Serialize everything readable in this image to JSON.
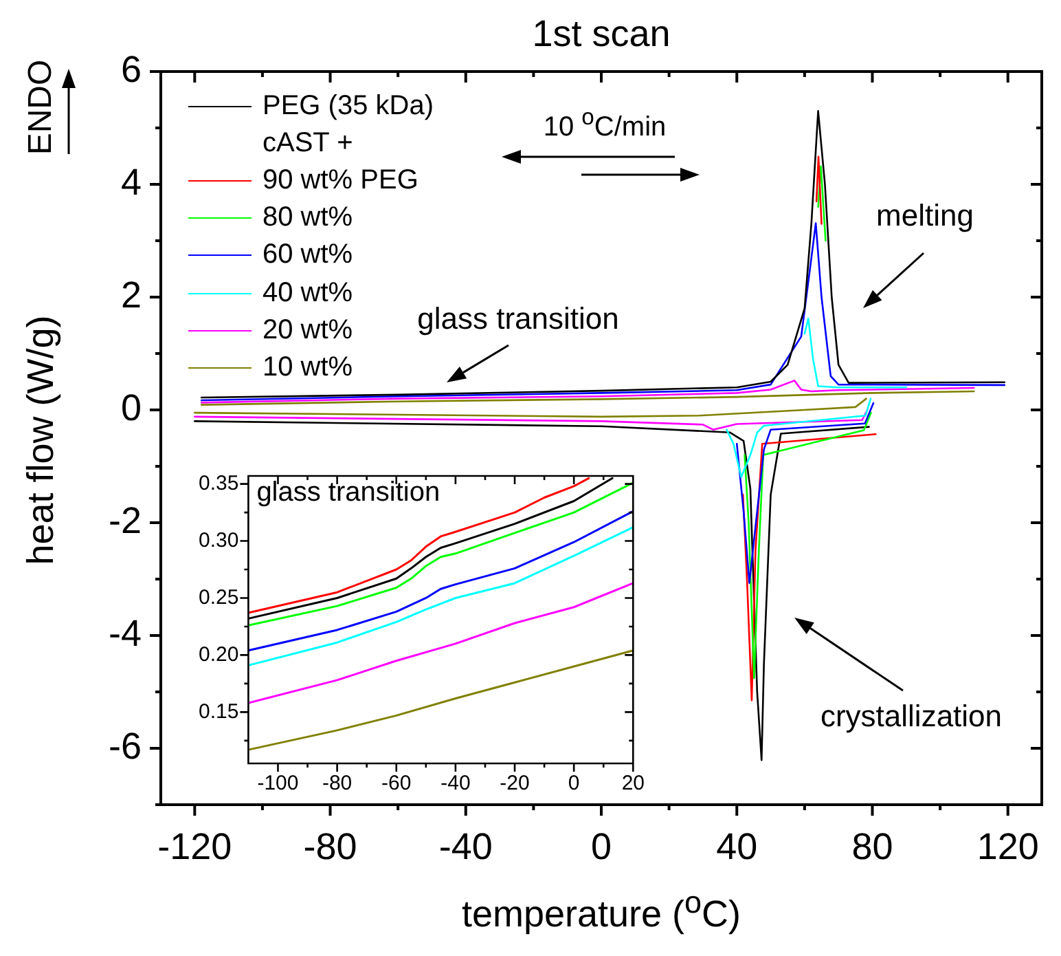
{
  "chart_data": [
    {
      "type": "line",
      "title": "1st scan",
      "xlabel": "temperature ($^{o}$C)",
      "ylabel": "heat flow (W/g)",
      "xlim": [
        -130,
        130
      ],
      "ylim": [
        -7,
        6
      ],
      "xticks": [
        -120,
        {
          "value": -100,
          "label": null
        },
        -80,
        {
          "value": -60,
          "label": null
        },
        -40,
        {
          "value": -20,
          "label": null
        },
        0,
        {
          "value": 20,
          "label": null
        },
        40,
        {
          "value": 60,
          "label": null
        },
        80,
        {
          "value": 100,
          "label": null
        },
        120
      ],
      "yticks": [
        {
          "value": -7,
          "label": null
        },
        -6,
        {
          "value": -5,
          "label": null
        },
        -4,
        {
          "value": -3,
          "label": null
        },
        -2,
        {
          "value": -1,
          "label": null
        },
        0,
        {
          "value": 1,
          "label": null
        },
        2,
        {
          "value": 3,
          "label": null
        },
        4,
        {
          "value": 5,
          "label": null
        },
        6
      ],
      "grid": false,
      "legend": "top left",
      "line_style": "solid",
      "marker": "none",
      "annotations": [
        "ENDO",
        "10 $^{o}$C/min",
        "cAST +",
        "glass transition",
        "melting",
        "crystallization"
      ],
      "series": [
        {
          "name": "PEG (35 kDa)",
          "color": "#000000",
          "x": [
            -118,
            -60,
            0,
            40,
            50,
            55,
            60,
            62,
            64,
            66,
            68,
            70,
            73,
            119
          ],
          "values": [
            0.22,
            0.27,
            0.34,
            0.4,
            0.5,
            0.8,
            1.8,
            3.3,
            5.3,
            4.0,
            2.0,
            0.8,
            0.48,
            0.49
          ]
        },
        {
          "name": "90 wt% PEG",
          "color": "#ff0000",
          "x": [
            63.5,
            64.1,
            65.0
          ],
          "values": [
            3.7,
            4.49,
            3.3
          ]
        },
        {
          "name": "80 wt%",
          "color": "#00ff00",
          "x": [
            64.0,
            64.8,
            66.2
          ],
          "values": [
            3.6,
            4.32,
            3.0
          ]
        },
        {
          "name": "60 wt%",
          "color": "#0000ff",
          "x": [
            -118,
            -60,
            0,
            40,
            50,
            59,
            61.8,
            63.3,
            65,
            67.7,
            70,
            119
          ],
          "values": [
            0.17,
            0.24,
            0.3,
            0.35,
            0.45,
            1.3,
            2.6,
            3.31,
            2.0,
            0.6,
            0.45,
            0.44
          ]
        },
        {
          "name": "40 wt%",
          "color": "#00ffff",
          "x": [
            60,
            61.1,
            62.5,
            64,
            70,
            90
          ],
          "values": [
            1.35,
            1.62,
            0.9,
            0.42,
            0.4,
            0.4
          ]
        },
        {
          "name": "20 wt%",
          "color": "#ff00ff",
          "x": [
            -118,
            -60,
            0,
            40,
            50,
            57,
            59,
            62,
            70,
            110
          ],
          "values": [
            0.13,
            0.2,
            0.24,
            0.3,
            0.36,
            0.52,
            0.36,
            0.33,
            0.35,
            0.39
          ]
        },
        {
          "name": "10 wt%",
          "color": "#808000",
          "x": [
            -118,
            -60,
            0,
            40,
            80,
            110
          ],
          "values": [
            0.09,
            0.15,
            0.19,
            0.23,
            0.3,
            0.33
          ]
        },
        {
          "color": "#00ffff",
          "x": [
            79.5,
            78,
            48,
            46,
            44,
            41.3,
            39,
            37
          ],
          "values": [
            0.2,
            -0.1,
            -0.28,
            -0.4,
            -0.8,
            -1.19,
            -0.6,
            -0.35
          ]
        },
        {
          "color": "#0000ff",
          "x": [
            80.3,
            77.8,
            50,
            48,
            46,
            43.7,
            42,
            40
          ],
          "values": [
            0.12,
            -0.24,
            -0.35,
            -0.7,
            -1.8,
            -3.07,
            -1.8,
            -0.6
          ]
        },
        {
          "color": "#00ff00",
          "x": [
            79.6,
            77.5,
            47.8,
            46.5,
            45.1,
            43.5,
            42.3
          ],
          "values": [
            -0.05,
            -0.36,
            -0.8,
            -2.5,
            -4.76,
            -2.0,
            -0.8
          ]
        },
        {
          "color": "#ff0000",
          "x": [
            81,
            47.5,
            45.5,
            44.4,
            43,
            41.8
          ],
          "values": [
            -0.43,
            -0.6,
            -2.5,
            -5.15,
            -3.0,
            -1.5
          ]
        },
        {
          "color": "#ff00ff",
          "x": [
            78.5,
            77,
            40,
            33,
            30,
            0,
            -120
          ],
          "values": [
            0.0,
            -0.18,
            -0.25,
            -0.35,
            -0.26,
            -0.2,
            -0.12
          ]
        },
        {
          "color": "#808000",
          "x": [
            78.2,
            75,
            60,
            29,
            0,
            -120
          ],
          "values": [
            0.2,
            0.05,
            0.0,
            -0.1,
            -0.12,
            -0.05
          ]
        },
        {
          "color": "#000000",
          "x": [
            79,
            53,
            50,
            48,
            47.3,
            46,
            44.6,
            44,
            42,
            38,
            0,
            -120
          ],
          "values": [
            -0.3,
            -0.42,
            -1.5,
            -4.5,
            -6.21,
            -5.0,
            -2.5,
            -1.4,
            -0.55,
            -0.4,
            -0.29,
            -0.2
          ]
        }
      ]
    },
    {
      "type": "line",
      "title": "glass transition",
      "xlim": [
        -110,
        20
      ],
      "ylim": [
        0.105,
        0.357
      ],
      "xticks": [
        -100,
        {
          "value": -90,
          "label": null
        },
        -80,
        {
          "value": -70,
          "label": null
        },
        -60,
        {
          "value": -50,
          "label": null
        },
        -40,
        {
          "value": -30,
          "label": null
        },
        -20,
        {
          "value": -10,
          "label": null
        },
        0,
        {
          "value": 10,
          "label": null
        },
        20
      ],
      "yticks": [
        {
          "value": 0.125,
          "label": null
        },
        0.15,
        {
          "value": 0.175,
          "label": null
        },
        {
          "value": 0.2,
          "label": "0.20"
        },
        {
          "value": 0.225,
          "label": null
        },
        0.25,
        {
          "value": 0.275,
          "label": null
        },
        {
          "value": 0.3,
          "label": "0.30"
        },
        {
          "value": 0.325,
          "label": null
        },
        0.35
      ],
      "grid": false,
      "line_style": "solid",
      "marker": "none",
      "series": [
        {
          "color": "#ff0000",
          "x": [
            -110,
            -80,
            -60,
            -55,
            -50,
            -45,
            -40,
            -20,
            -10,
            0,
            5
          ],
          "values": [
            0.237,
            0.255,
            0.275,
            0.283,
            0.295,
            0.304,
            0.308,
            0.325,
            0.338,
            0.348,
            0.355
          ]
        },
        {
          "color": "#000000",
          "x": [
            -110,
            -80,
            -60,
            -55,
            -50,
            -45,
            -40,
            -20,
            0,
            13
          ],
          "values": [
            0.232,
            0.25,
            0.267,
            0.276,
            0.286,
            0.294,
            0.298,
            0.315,
            0.335,
            0.355
          ]
        },
        {
          "color": "#00ff00",
          "x": [
            -110,
            -80,
            -60,
            -55,
            -50,
            -45,
            -40,
            -20,
            0,
            20
          ],
          "values": [
            0.226,
            0.243,
            0.259,
            0.267,
            0.278,
            0.286,
            0.289,
            0.307,
            0.325,
            0.351
          ]
        },
        {
          "color": "#0000ff",
          "x": [
            -110,
            -80,
            -60,
            -50,
            -45,
            -40,
            -20,
            0,
            20
          ],
          "values": [
            0.204,
            0.222,
            0.238,
            0.25,
            0.258,
            0.262,
            0.276,
            0.299,
            0.326
          ]
        },
        {
          "color": "#00ffff",
          "x": [
            -110,
            -80,
            -60,
            -50,
            -40,
            -20,
            0,
            20
          ],
          "values": [
            0.191,
            0.211,
            0.229,
            0.24,
            0.25,
            0.263,
            0.287,
            0.312
          ]
        },
        {
          "color": "#ff00ff",
          "x": [
            -110,
            -80,
            -60,
            -40,
            -20,
            0,
            20
          ],
          "values": [
            0.158,
            0.178,
            0.195,
            0.21,
            0.228,
            0.242,
            0.263
          ]
        },
        {
          "color": "#808000",
          "x": [
            -110,
            -80,
            -60,
            -40,
            -20,
            0,
            20
          ],
          "values": [
            0.117,
            0.134,
            0.147,
            0.162,
            0.176,
            0.19,
            0.204
          ]
        }
      ]
    }
  ]
}
